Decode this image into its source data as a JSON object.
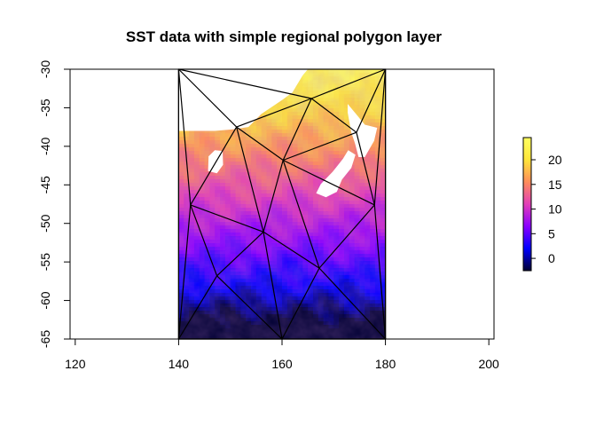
{
  "chart_data": {
    "type": "heatmap",
    "title": "SST data with simple regional polygon layer",
    "xlabel": "",
    "ylabel": "",
    "xlim": [
      119,
      201
    ],
    "ylim": [
      -65,
      -30
    ],
    "x_ticks": [
      120,
      140,
      160,
      180,
      200
    ],
    "y_ticks": [
      -30,
      -35,
      -40,
      -45,
      -50,
      -55,
      -60,
      -65
    ],
    "raster_extent": {
      "x": [
        140,
        180
      ],
      "y": [
        -65,
        -30
      ]
    },
    "colorbar": {
      "range": [
        -2.5,
        24.5
      ],
      "ticks": [
        0,
        5,
        10,
        15,
        20
      ],
      "palette": [
        "#000033",
        "#0000ff",
        "#8a00ff",
        "#e23fb8",
        "#ff8d5a",
        "#ffe53a",
        "#ffff60"
      ]
    },
    "land_mask_color": "#ffffff",
    "polygon_edge_color": "#000000",
    "polygon_vertices": [
      [
        140,
        -30
      ],
      [
        180,
        -30
      ],
      [
        165.7,
        -33.8
      ],
      [
        151.2,
        -37.5
      ],
      [
        160.2,
        -41.8
      ],
      [
        174.4,
        -38.2
      ],
      [
        142.3,
        -47.6
      ],
      [
        177.9,
        -47.6
      ],
      [
        156.4,
        -51.1
      ],
      [
        167.2,
        -55.8
      ],
      [
        147.4,
        -56.8
      ],
      [
        140,
        -65
      ],
      [
        160,
        -65
      ],
      [
        180,
        -65
      ]
    ],
    "polygon_edges": [
      [
        0,
        2
      ],
      [
        0,
        3
      ],
      [
        0,
        6
      ],
      [
        0,
        11
      ],
      [
        1,
        2
      ],
      [
        1,
        5
      ],
      [
        1,
        7
      ],
      [
        1,
        13
      ],
      [
        2,
        3
      ],
      [
        2,
        4
      ],
      [
        2,
        5
      ],
      [
        3,
        4
      ],
      [
        3,
        6
      ],
      [
        3,
        8
      ],
      [
        4,
        5
      ],
      [
        4,
        7
      ],
      [
        4,
        8
      ],
      [
        4,
        9
      ],
      [
        5,
        7
      ],
      [
        6,
        8
      ],
      [
        6,
        10
      ],
      [
        6,
        11
      ],
      [
        7,
        9
      ],
      [
        7,
        13
      ],
      [
        8,
        9
      ],
      [
        8,
        10
      ],
      [
        8,
        12
      ],
      [
        9,
        12
      ],
      [
        9,
        13
      ],
      [
        10,
        11
      ],
      [
        10,
        12
      ],
      [
        11,
        12
      ],
      [
        12,
        13
      ]
    ]
  }
}
